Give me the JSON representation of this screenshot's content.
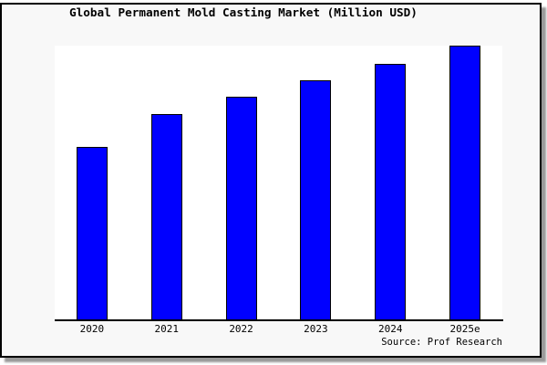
{
  "window": {
    "title": "Global Permanent Mold Casting Market (Million USD)"
  },
  "source_text": "Source: Prof Research",
  "colors": {
    "bar_fill": "#0000ff",
    "bar_outline": "#000000",
    "plot_background": "#ffffff",
    "frame_background": "#f8f8f8",
    "frame_border": "#000000",
    "shadow": "#999999",
    "text": "#000000"
  },
  "chart_data": {
    "type": "bar",
    "title": "Global Permanent Mold Casting Market (Million USD)",
    "categories": [
      "2020",
      "2021",
      "2022",
      "2023",
      "2024",
      "2025e"
    ],
    "values": [
      63,
      75,
      81.5,
      87.5,
      93.5,
      100
    ],
    "values_note": "chart shows no y-axis ticks or data labels; values are estimated from bar heights indexed to 2025e = 100",
    "xlabel": "",
    "ylabel": "",
    "ylim": [
      0,
      100
    ],
    "grid": false,
    "legend": "none",
    "source": "Source: Prof Research"
  }
}
